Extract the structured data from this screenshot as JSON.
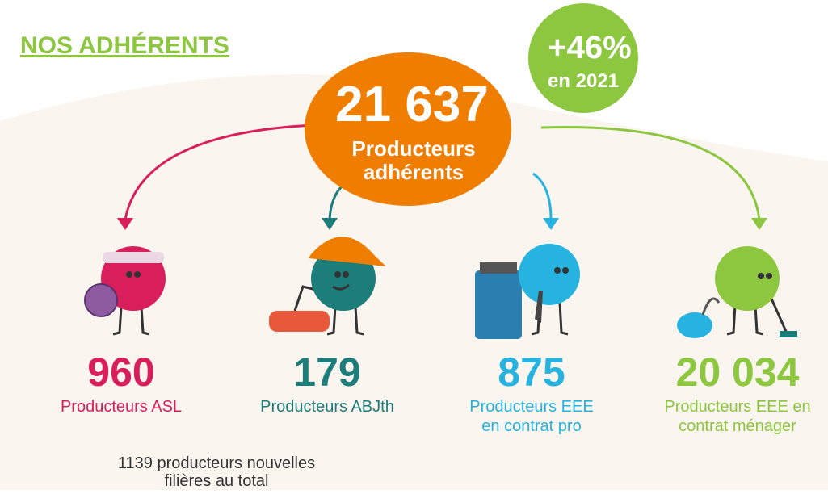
{
  "header": {
    "title": "NOS ADHÉRENTS"
  },
  "total": {
    "number": "21 637",
    "lines": [
      "Producteurs",
      "adhérents"
    ]
  },
  "badge": {
    "lines": [
      "+46%",
      "en 2021"
    ]
  },
  "groups": [
    {
      "number": "960",
      "lines": [
        "Producteurs ASL"
      ]
    },
    {
      "number": "179",
      "lines": [
        "Producteurs ABJth"
      ]
    },
    {
      "number": "875",
      "lines": [
        "Producteurs EEE",
        "en contrat pro"
      ]
    },
    {
      "number": "20 034",
      "lines": [
        "Producteurs EEE en",
        "contrat ménager"
      ]
    }
  ],
  "footer": {
    "lines": [
      "1139 producteurs nouvelles",
      "filières au total"
    ]
  }
}
